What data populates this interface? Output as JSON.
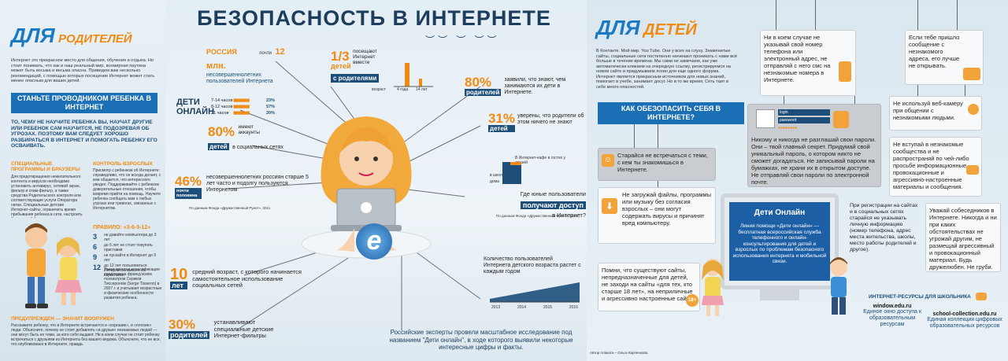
{
  "left": {
    "title_prefix": "ДЛЯ",
    "title_suffix": "РОДИТЕЛЕЙ",
    "intro": "Интернет это прекрасное место для общения, обучения и отдыха. Но стоит понимать, что как и наш реальный мир, всемирная паутина может быть весьма и весьма опасна. Приведем вам несколько рекомендаций, с помощью которых посещение Интернет может стать менее опасным для ваших детей.",
    "banner": "СТАНЬТЕ ПРОВОДНИКОМ РЕБЕНКА В ИНТЕРНЕТ",
    "warning": "ТО, ЧЕМУ НЕ НАУЧИТЕ РЕБЕНКА ВЫ, НАУЧАТ ДРУГИЕ ИЛИ РЕБЕНОК САМ НАУЧИТСЯ, НЕ ПОДОЗРЕВАЯ ОБ УГРОЗАХ. ПОЭТОМУ ВАМ СЛЕДУЕТ ХОРОШО РАЗБИРАТЬСЯ В ИНТЕРНЕТ И ПОМОГАТЬ РЕБЕНКУ ЕГО ОСВАИВАТЬ.",
    "programs_title": "СПЕЦИАЛЬНЫЕ ПРОГРАММЫ И БРАУЗЕРЫ",
    "programs_text": "Для предотвращения нежелательного контента и вирусов необходимо установить антивирус, сетевой экран, фильтр и спам-фильтр, а также средства Родительского контроля или соответствующие услуги Оператора связи. Специальные детские Интернет-сайты, ограничить время пребывания ребенка в сети, настроить безопасный браузер.",
    "control_title": "КОНТРОЛЬ ВЗРОСЛЫХ",
    "control_text": "Присмотр с ребенком об Интернете: справедливо, что он всегда делает, с кем общается, что интересного увидел. Поддерживайте с ребенком доверительные отношения, чтобы вовремя прийти на помощь. Научите ребенка сообщать вам о любых угрозах или тревогах, связанных с Интернетом.",
    "rule_title": "ПРАВИЛО: «3-6-9-12»",
    "rules": [
      {
        "num": "3",
        "text": "не давайте компьютера до 3 лет"
      },
      {
        "num": "6",
        "text": "до 6 лет не стоит покупать приставки"
      },
      {
        "num": "9",
        "text": "не пускайте в Интернет до 9 лет"
      },
      {
        "num": "12",
        "text": "до 12 лет пользоваться Интернетом вместе со взрослыми"
      }
    ],
    "rule_note": "Такая простая классификация предложена французским психиатром Сержем Тиссероном (Serge Tisseron) в 2007 г. и учитывает возрастные и физические особенности развития ребенка.",
    "forewarned_title": "ПРЕДУПРЕЖДЕН — ЗНАЧИТ ВООРУЖЕН",
    "forewarned_text": "Расскажите ребенку, что в Интернете встречаются и «хорошие», и «плохие» люди. Объясните, почему не стоит добавлять «в друзья» незнакомых людей — они могут быть не теми, за кого себя выдают. Ни в коем случае не стоит ребенку встречаться с друзьями из Интернета без вашего ведома. Объясните, что не все, что опубликовано в Интернете, правда."
  },
  "mid": {
    "title": "БЕЗОПАСНОСТЬ В ИНТЕРНЕТЕ",
    "russia_label": "РОССИЯ",
    "russia_pre": "почти",
    "russia_num": "12 млн.",
    "russia_text": "несовершеннолетних пользователей Интернета",
    "third_num": "1/3",
    "third_word": "детей",
    "third_text": "посещают Интернет вместе",
    "third_parents": "с родителями",
    "third_axis": [
      "возраст",
      "4 года",
      "14 лет"
    ],
    "online_title": "ДЕТИ ОНЛАЙН",
    "online_rows": [
      {
        "age": "7-14 часов",
        "pct": "23%"
      },
      {
        "age": "8-12 часов",
        "pct": "57%"
      },
      {
        "age": "21 часов",
        "pct": "20%"
      }
    ],
    "p80a_num": "80%",
    "p80a_word": "родителей",
    "p80a_text": "заявили, что знают, чем занимаются их дети в Интернете.",
    "p80b_num": "80%",
    "p80b_pre": "имеют аккаунты",
    "p80b_word": "детей",
    "p80b_text": "в социальных сетях",
    "p31_num": "31%",
    "p31_word": "детей",
    "p31_text": "уверены, что родители об этом ничего не знают",
    "p46_num": "46%",
    "p46_word": "почти половина",
    "p46_text": "несовершеннолетних россиян старше 5 лет часто и подолгу пользуются Интернетом",
    "source1": "По данным Фонда «Дружественный Рунет», 2011",
    "where_labels": [
      "В Интернет-кафе в гостях у друзей",
      "в школе",
      "дома"
    ],
    "where_q": "Где юные пользователи",
    "where_get": "получают доступ",
    "where_tail": "в Интернет?",
    "source2": "По данным Фонда «Дружественный Рунет», 2011",
    "age_num": "10",
    "age_word": "лет",
    "age_text": "средний возраст, с которого начинается самостоятельное использование социальных сетей",
    "growth_text": "Количество пользователей Интернета детского возраста растет с каждым годом",
    "growth_years": [
      "2013",
      "2014",
      "2015",
      "2016"
    ],
    "p30_num": "30%",
    "p30_word": "родителей",
    "p30_text": "устанавливают специальные детские Интернет-фильтры",
    "conclusion": "Российские эксперты провели масштабное исследование под названием \"Дети онлайн\", в ходе которого выявили некоторые интересные цифры и факты."
  },
  "right": {
    "title_prefix": "ДЛЯ",
    "title_suffix": "ДЕТЕЙ",
    "intro": "В Контакте. Мой мир. You Tube. Они у всех на слуху. Знаменитые сайты, социальные сети постепенно начинают проникать с нами всё больше в течение времени. Мы сами не замечаем, как уже автоматически кликаем на очередную ссылку, регистрируемся на новом сайте и придумываем логин для еще одного форума. Интернет является прекрасным источником для новых знаний, помогает в учебе, занимает досуг. Но в то же время, Сеть таит в себе много опасностей.",
    "question": "КАК ОБЕЗОПАСИТЬ СЕБЯ В ИНТЕРНЕТЕ?",
    "tip_meet": "Старайся не встречаться с теми, с кем ты знакомишься в Интернете.",
    "tip_download": "Не загружай файлы, программы или музыку без согласия взрослых – они могут содержать вирусы и причинят вред компьютеру.",
    "tip_sites": "Помни, что существуют сайты, непредназначенные для детей, не заходи на сайты «для тех, кто старше 18 лет», на неприличные и агрессивно настроенные сайты.",
    "age_badge": "18+",
    "tip_phone": "Ни в коем случае не указывай свой номер телефона или электронный адрес, не отправляй с него смс на незнакомые номера в Интернете.",
    "tip_email": "Если тебе пришло сообщение с незнакомого адреса, его лучше не открывать.",
    "login_label": "login",
    "password_label": "password",
    "password_mask": "●●●●●●●●",
    "tip_password": "Никому и никогда не разглашай свои пароли. Они – твой главный секрет. Придумай свой уникальный пароль, о котором никто не сможет догадаться. Не записывай пароли на бумажках, не храни их в открытом доступе. Не отправляй свои пароли по электронной почте.",
    "tip_webcam": "Не используй веб-камеру при общении с незнакомыми людьми.",
    "tip_communities": "Не вступай в незнакомые сообщества и не распространяй по чей-либо просьбе информационные, провокационные и агрессивно-настроенные материалы и сообщения.",
    "tip_register": "При регистрации на сайтах и в социальных сетях старайся не указывать личную информацию (номер телефона, адрес места жительства, школы, место работы родителей и другое).",
    "tip_respect": "Уважай собеседников в Интернете. Никогда и ни при каких обстоятельствах не угрожай другим, не размещай агрессивный и провокационный материал. Будь дружелюбен. Не груби.",
    "screen_title": "Дети Онлайн",
    "screen_text": "Линия помощи «Дети онлайн» — бесплатная всероссийская служба телефонного и онлайн-консультирования для детей и взрослых по проблемам безопасного использования интернета и мобильной связи.",
    "resources_title": "ИНТЕРНЕТ-РЕСУРСЫ ДЛЯ ШКОЛЬНИКА",
    "res1_url": "window.edu.ru",
    "res1_text": "Единое окно доступа к образовательным ресурсам",
    "res2_url": "school-collection.edu.ru",
    "res2_text": "Единая коллекция цифровых образовательных ресурсов",
    "author": "Автор плаката – Ольга Карпенкова"
  },
  "colors": {
    "orange": "#f08a12",
    "blue": "#1b79c2",
    "navy": "#1d4e7a",
    "bar": "#1b6fb5"
  }
}
